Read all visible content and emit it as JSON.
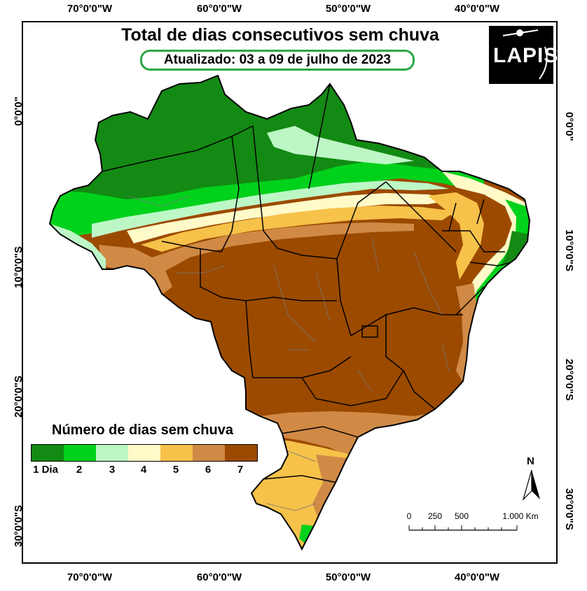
{
  "title": "Total de dias consecutivos sem chuva",
  "subtitle": "Atualizado: 03 a 09 de julho de 2023",
  "logo": "LAPIS",
  "axes": {
    "top_ticks": [
      "70°0'0\"W",
      "60°0'0\"W",
      "50°0'0\"W",
      "40°0'0\"W"
    ],
    "bottom_ticks": [
      "70°0'0\"W",
      "60°0'0\"W",
      "50°0'0\"W",
      "40°0'0\"W"
    ],
    "left_ticks": [
      "0°0'0\"",
      "10°0'0\"S",
      "20°0'0\"S",
      "30°0'0\"S"
    ],
    "right_ticks": [
      "0°0'0\"",
      "10°0'0\"S",
      "20°0'0\"S",
      "30°0'0\"S"
    ]
  },
  "legend": {
    "title": "Número de dias sem chuva",
    "items": [
      {
        "label": "1 Dia",
        "color": "#138a13"
      },
      {
        "label": "2",
        "color": "#00d21c"
      },
      {
        "label": "3",
        "color": "#bdf7c6"
      },
      {
        "label": "4",
        "color": "#fffac8"
      },
      {
        "label": "5",
        "color": "#f7c24a"
      },
      {
        "label": "6",
        "color": "#d08a46"
      },
      {
        "label": "7",
        "color": "#9c4a00"
      }
    ]
  },
  "north_label": "N",
  "scale_bar": {
    "labels": [
      "0",
      "250",
      "500",
      "1.000 Km"
    ]
  }
}
